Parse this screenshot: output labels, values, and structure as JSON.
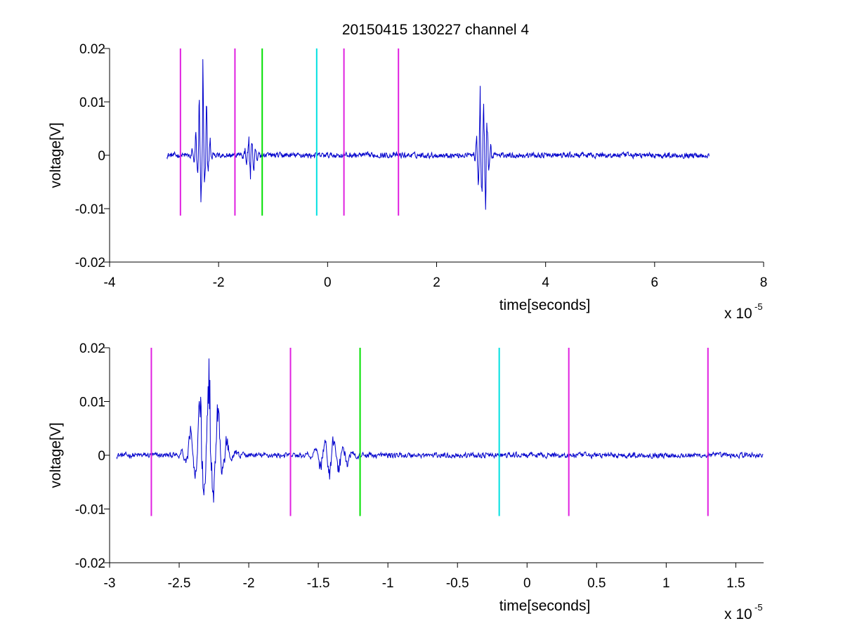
{
  "figure": {
    "title": "20150415 130227 channel 4",
    "background": "#ffffff"
  },
  "chart_data": [
    {
      "type": "line",
      "title": "20150415 130227 channel 4",
      "xlabel": "time[seconds]",
      "ylabel": "voltage[V]",
      "x_exponent_label": {
        "base": "x 10",
        "power": "-5"
      },
      "xlim": [
        -4,
        8
      ],
      "ylim": [
        -0.02,
        0.02
      ],
      "xticks": [
        -4,
        -2,
        0,
        2,
        4,
        6,
        8
      ],
      "xtick_labels": [
        "-4",
        "-2",
        "0",
        "2",
        "4",
        "6",
        "8"
      ],
      "yticks": [
        -0.02,
        -0.01,
        0,
        0.01,
        0.02
      ],
      "ytick_labels": [
        "-0.02",
        "-0.01",
        "0",
        "0.01",
        "0.02"
      ],
      "grid": false,
      "signal": {
        "color": "#0000cc",
        "x_range": [
          -2.95,
          7.0
        ],
        "events": [
          {
            "center": -2.3,
            "peak": 0.018,
            "trough": -0.0088,
            "width": 0.25
          },
          {
            "center": -1.4,
            "peak": 0.0035,
            "trough": -0.0045,
            "width": 0.25
          },
          {
            "center": 2.85,
            "peak": 0.013,
            "trough": -0.0102,
            "width": 0.25
          }
        ]
      },
      "markers": [
        {
          "x": -2.7,
          "y_range": [
            -0.0113,
            0.02
          ],
          "color": "#e020e0"
        },
        {
          "x": -1.7,
          "y_range": [
            -0.0113,
            0.02
          ],
          "color": "#e020e0"
        },
        {
          "x": -1.2,
          "y_range": [
            -0.0113,
            0.02
          ],
          "color": "#00e000"
        },
        {
          "x": -0.2,
          "y_range": [
            -0.0113,
            0.02
          ],
          "color": "#00e0e0"
        },
        {
          "x": 0.3,
          "y_range": [
            -0.0113,
            0.02
          ],
          "color": "#e020e0"
        },
        {
          "x": 1.3,
          "y_range": [
            -0.0113,
            0.02
          ],
          "color": "#e020e0"
        }
      ]
    },
    {
      "type": "line",
      "title": "",
      "xlabel": "time[seconds]",
      "ylabel": "voltage[V]",
      "x_exponent_label": {
        "base": "x 10",
        "power": "-5"
      },
      "xlim": [
        -3.0,
        1.7
      ],
      "ylim": [
        -0.02,
        0.02
      ],
      "xticks": [
        -3,
        -2.5,
        -2,
        -1.5,
        -1,
        -0.5,
        0,
        0.5,
        1,
        1.5
      ],
      "xtick_labels": [
        "-3",
        "-2.5",
        "-2",
        "-1.5",
        "-1",
        "-0.5",
        "0",
        "0.5",
        "1",
        "1.5"
      ],
      "yticks": [
        -0.02,
        -0.01,
        0,
        0.01,
        0.02
      ],
      "ytick_labels": [
        "-0.02",
        "-0.01",
        "0",
        "0.01",
        "0.02"
      ],
      "grid": false,
      "signal": {
        "color": "#0000cc",
        "x_range": [
          -2.95,
          1.7
        ],
        "events": [
          {
            "center": -2.3,
            "peak": 0.018,
            "trough": -0.0088,
            "width": 0.25
          },
          {
            "center": -1.4,
            "peak": 0.0035,
            "trough": -0.0045,
            "width": 0.25
          }
        ]
      },
      "markers": [
        {
          "x": -2.7,
          "y_range": [
            -0.0113,
            0.02
          ],
          "color": "#e020e0"
        },
        {
          "x": -1.7,
          "y_range": [
            -0.0113,
            0.02
          ],
          "color": "#e020e0"
        },
        {
          "x": -1.2,
          "y_range": [
            -0.0113,
            0.02
          ],
          "color": "#00e000"
        },
        {
          "x": -0.2,
          "y_range": [
            -0.0113,
            0.02
          ],
          "color": "#00e0e0"
        },
        {
          "x": 0.3,
          "y_range": [
            -0.0113,
            0.02
          ],
          "color": "#e020e0"
        },
        {
          "x": 1.3,
          "y_range": [
            -0.0113,
            0.02
          ],
          "color": "#e020e0"
        }
      ]
    }
  ]
}
